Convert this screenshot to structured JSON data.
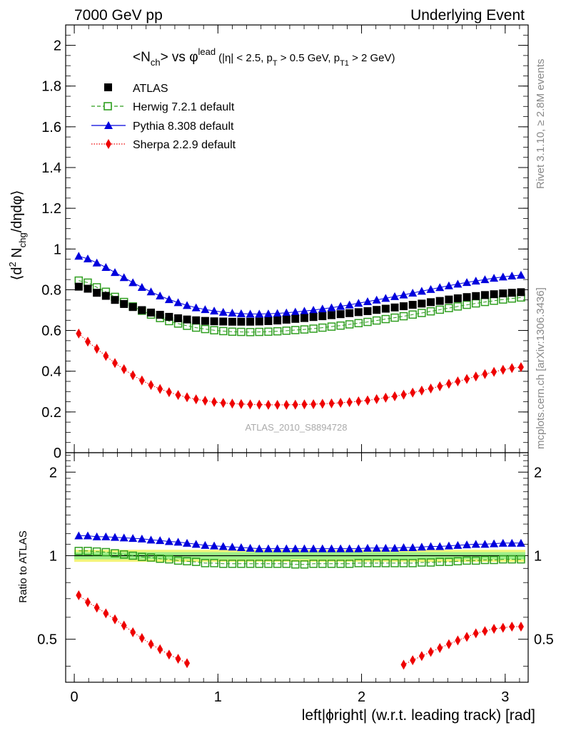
{
  "header": {
    "left": "7000 GeV pp",
    "right": "Underlying Event"
  },
  "side_labels": {
    "rivet": "Rivet 3.1.10, ≥ 2.8M events",
    "mcplots": "mcplots.cern.ch [arXiv:1306.3436]"
  },
  "plot_title": {
    "main": "<N",
    "main_sub": "ch",
    "main_mid": "> vs φ",
    "main_sup": "lead",
    "cuts_a": "(|η| < 2.5, p",
    "cuts_a_sub": "T",
    "cuts_b": " > 0.5 GeV, p",
    "cuts_b_sub": "T1",
    "cuts_c": " > 2 GeV)"
  },
  "watermark": "ATLAS_2010_S8894728",
  "ylabel_main": {
    "a": "⟨d",
    "sup": "2",
    "b": " N",
    "sub": "chg",
    "c": "/dηdφ⟩"
  },
  "ylabel_ratio": "Ratio to ATLAS",
  "xlabel": "left|ϕright| (w.r.t. leading track) [rad]",
  "colors": {
    "atlas": "#000000",
    "herwig": "#2e9e1f",
    "pythia": "#0000dd",
    "sherpa": "#ee0000",
    "band_inner": "#9ef08a",
    "band_outer": "#f4f47a"
  },
  "chart_data": [
    {
      "type": "scatter",
      "panel": "main",
      "xlim": [
        -0.06,
        3.16
      ],
      "ylim": [
        0,
        2.1
      ],
      "yticks": [
        "0",
        "0.2",
        "0.4",
        "0.6",
        "0.8",
        "1",
        "1.2",
        "1.4",
        "1.6",
        "1.8",
        "2"
      ],
      "xticks": [
        "0",
        "1",
        "2",
        "3"
      ],
      "series": [
        {
          "name": "ATLAS",
          "marker": "square-filled",
          "x": [
            0.031,
            0.094,
            0.157,
            0.22,
            0.283,
            0.346,
            0.408,
            0.471,
            0.534,
            0.597,
            0.66,
            0.723,
            0.785,
            0.848,
            0.911,
            0.974,
            1.037,
            1.1,
            1.162,
            1.225,
            1.288,
            1.351,
            1.414,
            1.477,
            1.539,
            1.602,
            1.665,
            1.728,
            1.791,
            1.854,
            1.916,
            1.979,
            2.042,
            2.105,
            2.168,
            2.231,
            2.293,
            2.356,
            2.419,
            2.482,
            2.545,
            2.608,
            2.67,
            2.733,
            2.796,
            2.859,
            2.922,
            2.985,
            3.047,
            3.11
          ],
          "y": [
            0.815,
            0.805,
            0.785,
            0.77,
            0.75,
            0.73,
            0.715,
            0.7,
            0.688,
            0.677,
            0.667,
            0.66,
            0.654,
            0.65,
            0.647,
            0.645,
            0.644,
            0.643,
            0.643,
            0.643,
            0.644,
            0.646,
            0.649,
            0.653,
            0.657,
            0.661,
            0.666,
            0.67,
            0.675,
            0.68,
            0.685,
            0.69,
            0.695,
            0.701,
            0.707,
            0.713,
            0.719,
            0.726,
            0.732,
            0.739,
            0.745,
            0.752,
            0.758,
            0.764,
            0.769,
            0.774,
            0.778,
            0.782,
            0.785,
            0.788
          ]
        },
        {
          "name": "Herwig 7.2.1 default",
          "marker": "square-open",
          "line": "dashed",
          "x": [
            0.031,
            0.094,
            0.157,
            0.22,
            0.283,
            0.346,
            0.408,
            0.471,
            0.534,
            0.597,
            0.66,
            0.723,
            0.785,
            0.848,
            0.911,
            0.974,
            1.037,
            1.1,
            1.162,
            1.225,
            1.288,
            1.351,
            1.414,
            1.477,
            1.539,
            1.602,
            1.665,
            1.728,
            1.791,
            1.854,
            1.916,
            1.979,
            2.042,
            2.105,
            2.168,
            2.231,
            2.293,
            2.356,
            2.419,
            2.482,
            2.545,
            2.608,
            2.67,
            2.733,
            2.796,
            2.859,
            2.922,
            2.985,
            3.047,
            3.11
          ],
          "y": [
            0.845,
            0.835,
            0.812,
            0.79,
            0.765,
            0.74,
            0.718,
            0.697,
            0.678,
            0.661,
            0.646,
            0.634,
            0.623,
            0.614,
            0.607,
            0.601,
            0.597,
            0.594,
            0.593,
            0.592,
            0.593,
            0.594,
            0.596,
            0.599,
            0.602,
            0.605,
            0.609,
            0.614,
            0.619,
            0.624,
            0.63,
            0.636,
            0.642,
            0.649,
            0.656,
            0.663,
            0.67,
            0.678,
            0.686,
            0.694,
            0.702,
            0.71,
            0.718,
            0.726,
            0.733,
            0.74,
            0.746,
            0.752,
            0.757,
            0.762
          ]
        },
        {
          "name": "Pythia 8.308 default",
          "marker": "triangle-filled",
          "line": "solid",
          "x": [
            0.031,
            0.094,
            0.157,
            0.22,
            0.283,
            0.346,
            0.408,
            0.471,
            0.534,
            0.597,
            0.66,
            0.723,
            0.785,
            0.848,
            0.911,
            0.974,
            1.037,
            1.1,
            1.162,
            1.225,
            1.288,
            1.351,
            1.414,
            1.477,
            1.539,
            1.602,
            1.665,
            1.728,
            1.791,
            1.854,
            1.916,
            1.979,
            2.042,
            2.105,
            2.168,
            2.231,
            2.293,
            2.356,
            2.419,
            2.482,
            2.545,
            2.608,
            2.67,
            2.733,
            2.796,
            2.859,
            2.922,
            2.985,
            3.047,
            3.11
          ],
          "y": [
            0.965,
            0.952,
            0.932,
            0.91,
            0.885,
            0.86,
            0.835,
            0.812,
            0.79,
            0.77,
            0.752,
            0.737,
            0.723,
            0.712,
            0.703,
            0.696,
            0.69,
            0.686,
            0.683,
            0.681,
            0.681,
            0.682,
            0.684,
            0.687,
            0.691,
            0.695,
            0.7,
            0.706,
            0.712,
            0.719,
            0.726,
            0.734,
            0.742,
            0.75,
            0.758,
            0.767,
            0.775,
            0.784,
            0.793,
            0.802,
            0.811,
            0.82,
            0.828,
            0.836,
            0.843,
            0.85,
            0.857,
            0.863,
            0.868,
            0.872
          ]
        },
        {
          "name": "Sherpa 2.2.9 default",
          "marker": "diamond-filled",
          "line": "dotted",
          "x": [
            0.031,
            0.094,
            0.157,
            0.22,
            0.283,
            0.346,
            0.408,
            0.471,
            0.534,
            0.597,
            0.66,
            0.723,
            0.785,
            0.848,
            0.911,
            0.974,
            1.037,
            1.1,
            1.162,
            1.225,
            1.288,
            1.351,
            1.414,
            1.477,
            1.539,
            1.602,
            1.665,
            1.728,
            1.791,
            1.854,
            1.916,
            1.979,
            2.042,
            2.105,
            2.168,
            2.231,
            2.293,
            2.356,
            2.419,
            2.482,
            2.545,
            2.608,
            2.67,
            2.733,
            2.796,
            2.859,
            2.922,
            2.985,
            3.047,
            3.11
          ],
          "y": [
            0.585,
            0.545,
            0.51,
            0.475,
            0.44,
            0.41,
            0.38,
            0.355,
            0.332,
            0.313,
            0.297,
            0.283,
            0.272,
            0.262,
            0.255,
            0.249,
            0.244,
            0.241,
            0.239,
            0.237,
            0.236,
            0.235,
            0.235,
            0.235,
            0.236,
            0.237,
            0.238,
            0.24,
            0.242,
            0.245,
            0.248,
            0.252,
            0.257,
            0.263,
            0.27,
            0.277,
            0.285,
            0.295,
            0.305,
            0.315,
            0.326,
            0.338,
            0.35,
            0.362,
            0.374,
            0.386,
            0.397,
            0.407,
            0.415,
            0.42
          ]
        }
      ]
    },
    {
      "type": "scatter",
      "panel": "ratio",
      "xlim": [
        -0.06,
        3.16
      ],
      "ylim": [
        0.35,
        2.35
      ],
      "ylog": true,
      "yticks": [
        "0.5",
        "1",
        "2"
      ],
      "xticks": [
        "0",
        "1",
        "2",
        "3"
      ],
      "band": {
        "inner": [
          0.97,
          1.03
        ],
        "outer": [
          0.95,
          1.05
        ]
      },
      "series": [
        {
          "name": "Herwig 7.2.1 default",
          "marker": "square-open",
          "x": [
            0.031,
            0.094,
            0.157,
            0.22,
            0.283,
            0.346,
            0.408,
            0.471,
            0.534,
            0.597,
            0.66,
            0.723,
            0.785,
            0.848,
            0.911,
            0.974,
            1.037,
            1.1,
            1.162,
            1.225,
            1.288,
            1.351,
            1.414,
            1.477,
            1.539,
            1.602,
            1.665,
            1.728,
            1.791,
            1.854,
            1.916,
            1.979,
            2.042,
            2.105,
            2.168,
            2.231,
            2.293,
            2.356,
            2.419,
            2.482,
            2.545,
            2.608,
            2.67,
            2.733,
            2.796,
            2.859,
            2.922,
            2.985,
            3.047,
            3.11
          ],
          "y": [
            1.04,
            1.04,
            1.035,
            1.03,
            1.02,
            1.01,
            1.0,
            0.99,
            0.985,
            0.975,
            0.97,
            0.96,
            0.955,
            0.95,
            0.94,
            0.94,
            0.935,
            0.935,
            0.935,
            0.935,
            0.935,
            0.935,
            0.935,
            0.935,
            0.93,
            0.93,
            0.935,
            0.935,
            0.935,
            0.935,
            0.935,
            0.94,
            0.94,
            0.94,
            0.94,
            0.94,
            0.94,
            0.94,
            0.945,
            0.945,
            0.95,
            0.95,
            0.955,
            0.96,
            0.96,
            0.965,
            0.965,
            0.97,
            0.97,
            0.97
          ]
        },
        {
          "name": "Pythia 8.308 default",
          "marker": "triangle-filled",
          "x": [
            0.031,
            0.094,
            0.157,
            0.22,
            0.283,
            0.346,
            0.408,
            0.471,
            0.534,
            0.597,
            0.66,
            0.723,
            0.785,
            0.848,
            0.911,
            0.974,
            1.037,
            1.1,
            1.162,
            1.225,
            1.288,
            1.351,
            1.414,
            1.477,
            1.539,
            1.602,
            1.665,
            1.728,
            1.791,
            1.854,
            1.916,
            1.979,
            2.042,
            2.105,
            2.168,
            2.231,
            2.293,
            2.356,
            2.419,
            2.482,
            2.545,
            2.608,
            2.67,
            2.733,
            2.796,
            2.859,
            2.922,
            2.985,
            3.047,
            3.11
          ],
          "y": [
            1.18,
            1.18,
            1.17,
            1.17,
            1.165,
            1.16,
            1.155,
            1.15,
            1.14,
            1.135,
            1.125,
            1.12,
            1.11,
            1.1,
            1.09,
            1.085,
            1.08,
            1.075,
            1.07,
            1.065,
            1.06,
            1.06,
            1.06,
            1.06,
            1.06,
            1.06,
            1.06,
            1.06,
            1.06,
            1.06,
            1.06,
            1.06,
            1.065,
            1.065,
            1.065,
            1.065,
            1.07,
            1.07,
            1.075,
            1.08,
            1.08,
            1.085,
            1.09,
            1.095,
            1.1,
            1.1,
            1.105,
            1.11,
            1.11,
            1.11
          ]
        },
        {
          "name": "Sherpa 2.2.9 default",
          "marker": "diamond-filled",
          "x": [
            0.031,
            0.094,
            0.157,
            0.22,
            0.283,
            0.346,
            0.408,
            0.471,
            0.534,
            0.597,
            0.66,
            0.723,
            0.785,
            2.293,
            2.356,
            2.419,
            2.482,
            2.545,
            2.608,
            2.67,
            2.733,
            2.796,
            2.859,
            2.922,
            2.985,
            3.047,
            3.11
          ],
          "y": [
            0.72,
            0.68,
            0.65,
            0.62,
            0.59,
            0.56,
            0.53,
            0.505,
            0.48,
            0.46,
            0.44,
            0.425,
            0.41,
            0.405,
            0.42,
            0.435,
            0.45,
            0.465,
            0.48,
            0.495,
            0.51,
            0.525,
            0.535,
            0.545,
            0.55,
            0.555,
            0.555
          ]
        }
      ]
    }
  ]
}
